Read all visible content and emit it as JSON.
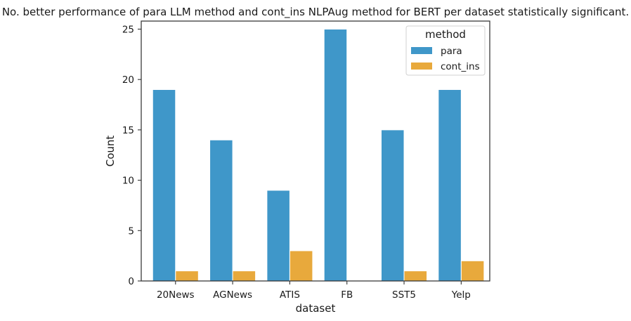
{
  "chart_data": {
    "type": "bar",
    "title": "No. better performance of para LLM method and cont_ins NLPAug method for BERT per dataset statistically significant.",
    "xlabel": "dataset",
    "ylabel": "Count",
    "categories": [
      "20News",
      "AGNews",
      "ATIS",
      "FB",
      "SST5",
      "Yelp"
    ],
    "series": [
      {
        "name": "para",
        "values": [
          19,
          14,
          9,
          25,
          15,
          19
        ],
        "color": "#3f97c9"
      },
      {
        "name": "cont_ins",
        "values": [
          1,
          1,
          3,
          0,
          1,
          2
        ],
        "color": "#e8a93c"
      }
    ],
    "ylim": [
      0,
      25.8
    ],
    "yticks": [
      0,
      5,
      10,
      15,
      20,
      25
    ],
    "grid": false,
    "legend": {
      "title": "method",
      "position": "top-right"
    }
  }
}
